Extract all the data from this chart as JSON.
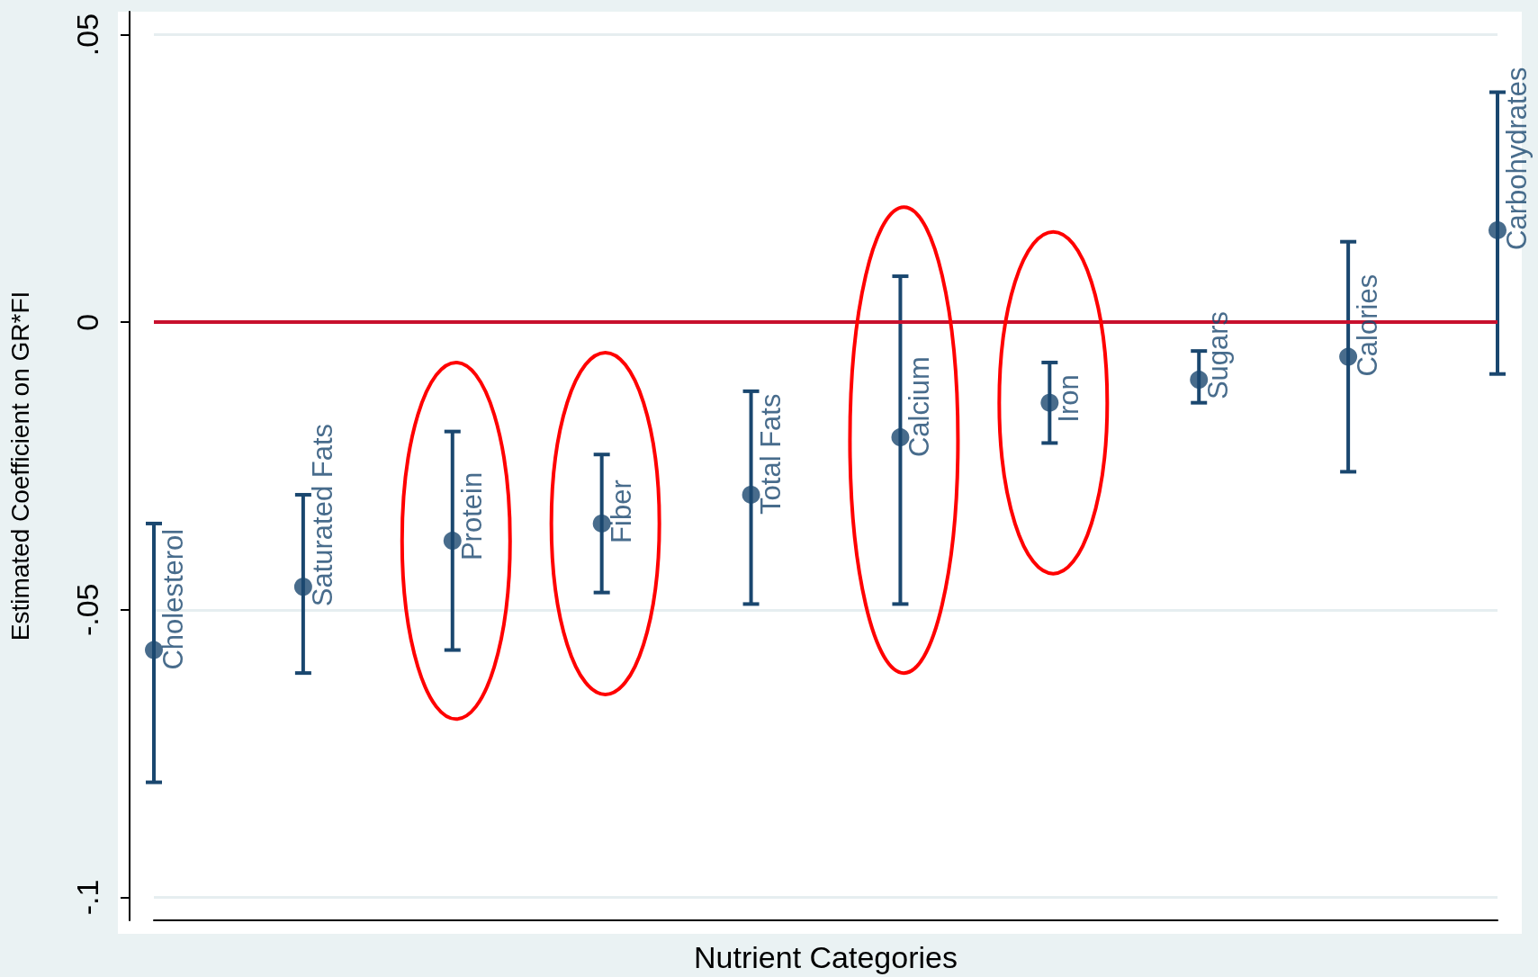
{
  "chart_data": {
    "type": "scatter",
    "xlabel": "Nutrient Categories",
    "ylabel": "Estimated Coefficient on GR*FI",
    "categories": [
      "Cholesterol",
      "Saturated Fats",
      "Protein",
      "Fiber",
      "Total Fats",
      "Calcium",
      "Iron",
      "Sugars",
      "Calories",
      "Carbohydrates"
    ],
    "values": [
      -0.057,
      -0.046,
      -0.038,
      -0.035,
      -0.03,
      -0.02,
      -0.014,
      -0.01,
      -0.006,
      0.016
    ],
    "errors": [
      [
        -0.08,
        -0.035
      ],
      [
        -0.061,
        -0.03
      ],
      [
        -0.057,
        -0.019
      ],
      [
        -0.047,
        -0.023
      ],
      [
        -0.049,
        -0.012
      ],
      [
        -0.049,
        0.008
      ],
      [
        -0.021,
        -0.007
      ],
      [
        -0.014,
        -0.005
      ],
      [
        -0.026,
        0.014
      ],
      [
        -0.009,
        0.04
      ]
    ],
    "color": "#1a476f",
    "marker": "circle",
    "grid": "y",
    "tick_labels": "y",
    "ylim": [
      -0.104,
      0.054
    ],
    "yticks": [
      {
        "value": -0.1,
        "label": "-.1"
      },
      {
        "value": -0.05,
        "label": "-.05"
      },
      0,
      {
        "value": 0.05,
        "label": ".05"
      }
    ],
    "ref_lines": [
      {
        "axis": "y",
        "value": 0,
        "color": "#c8102e"
      }
    ]
  }
}
